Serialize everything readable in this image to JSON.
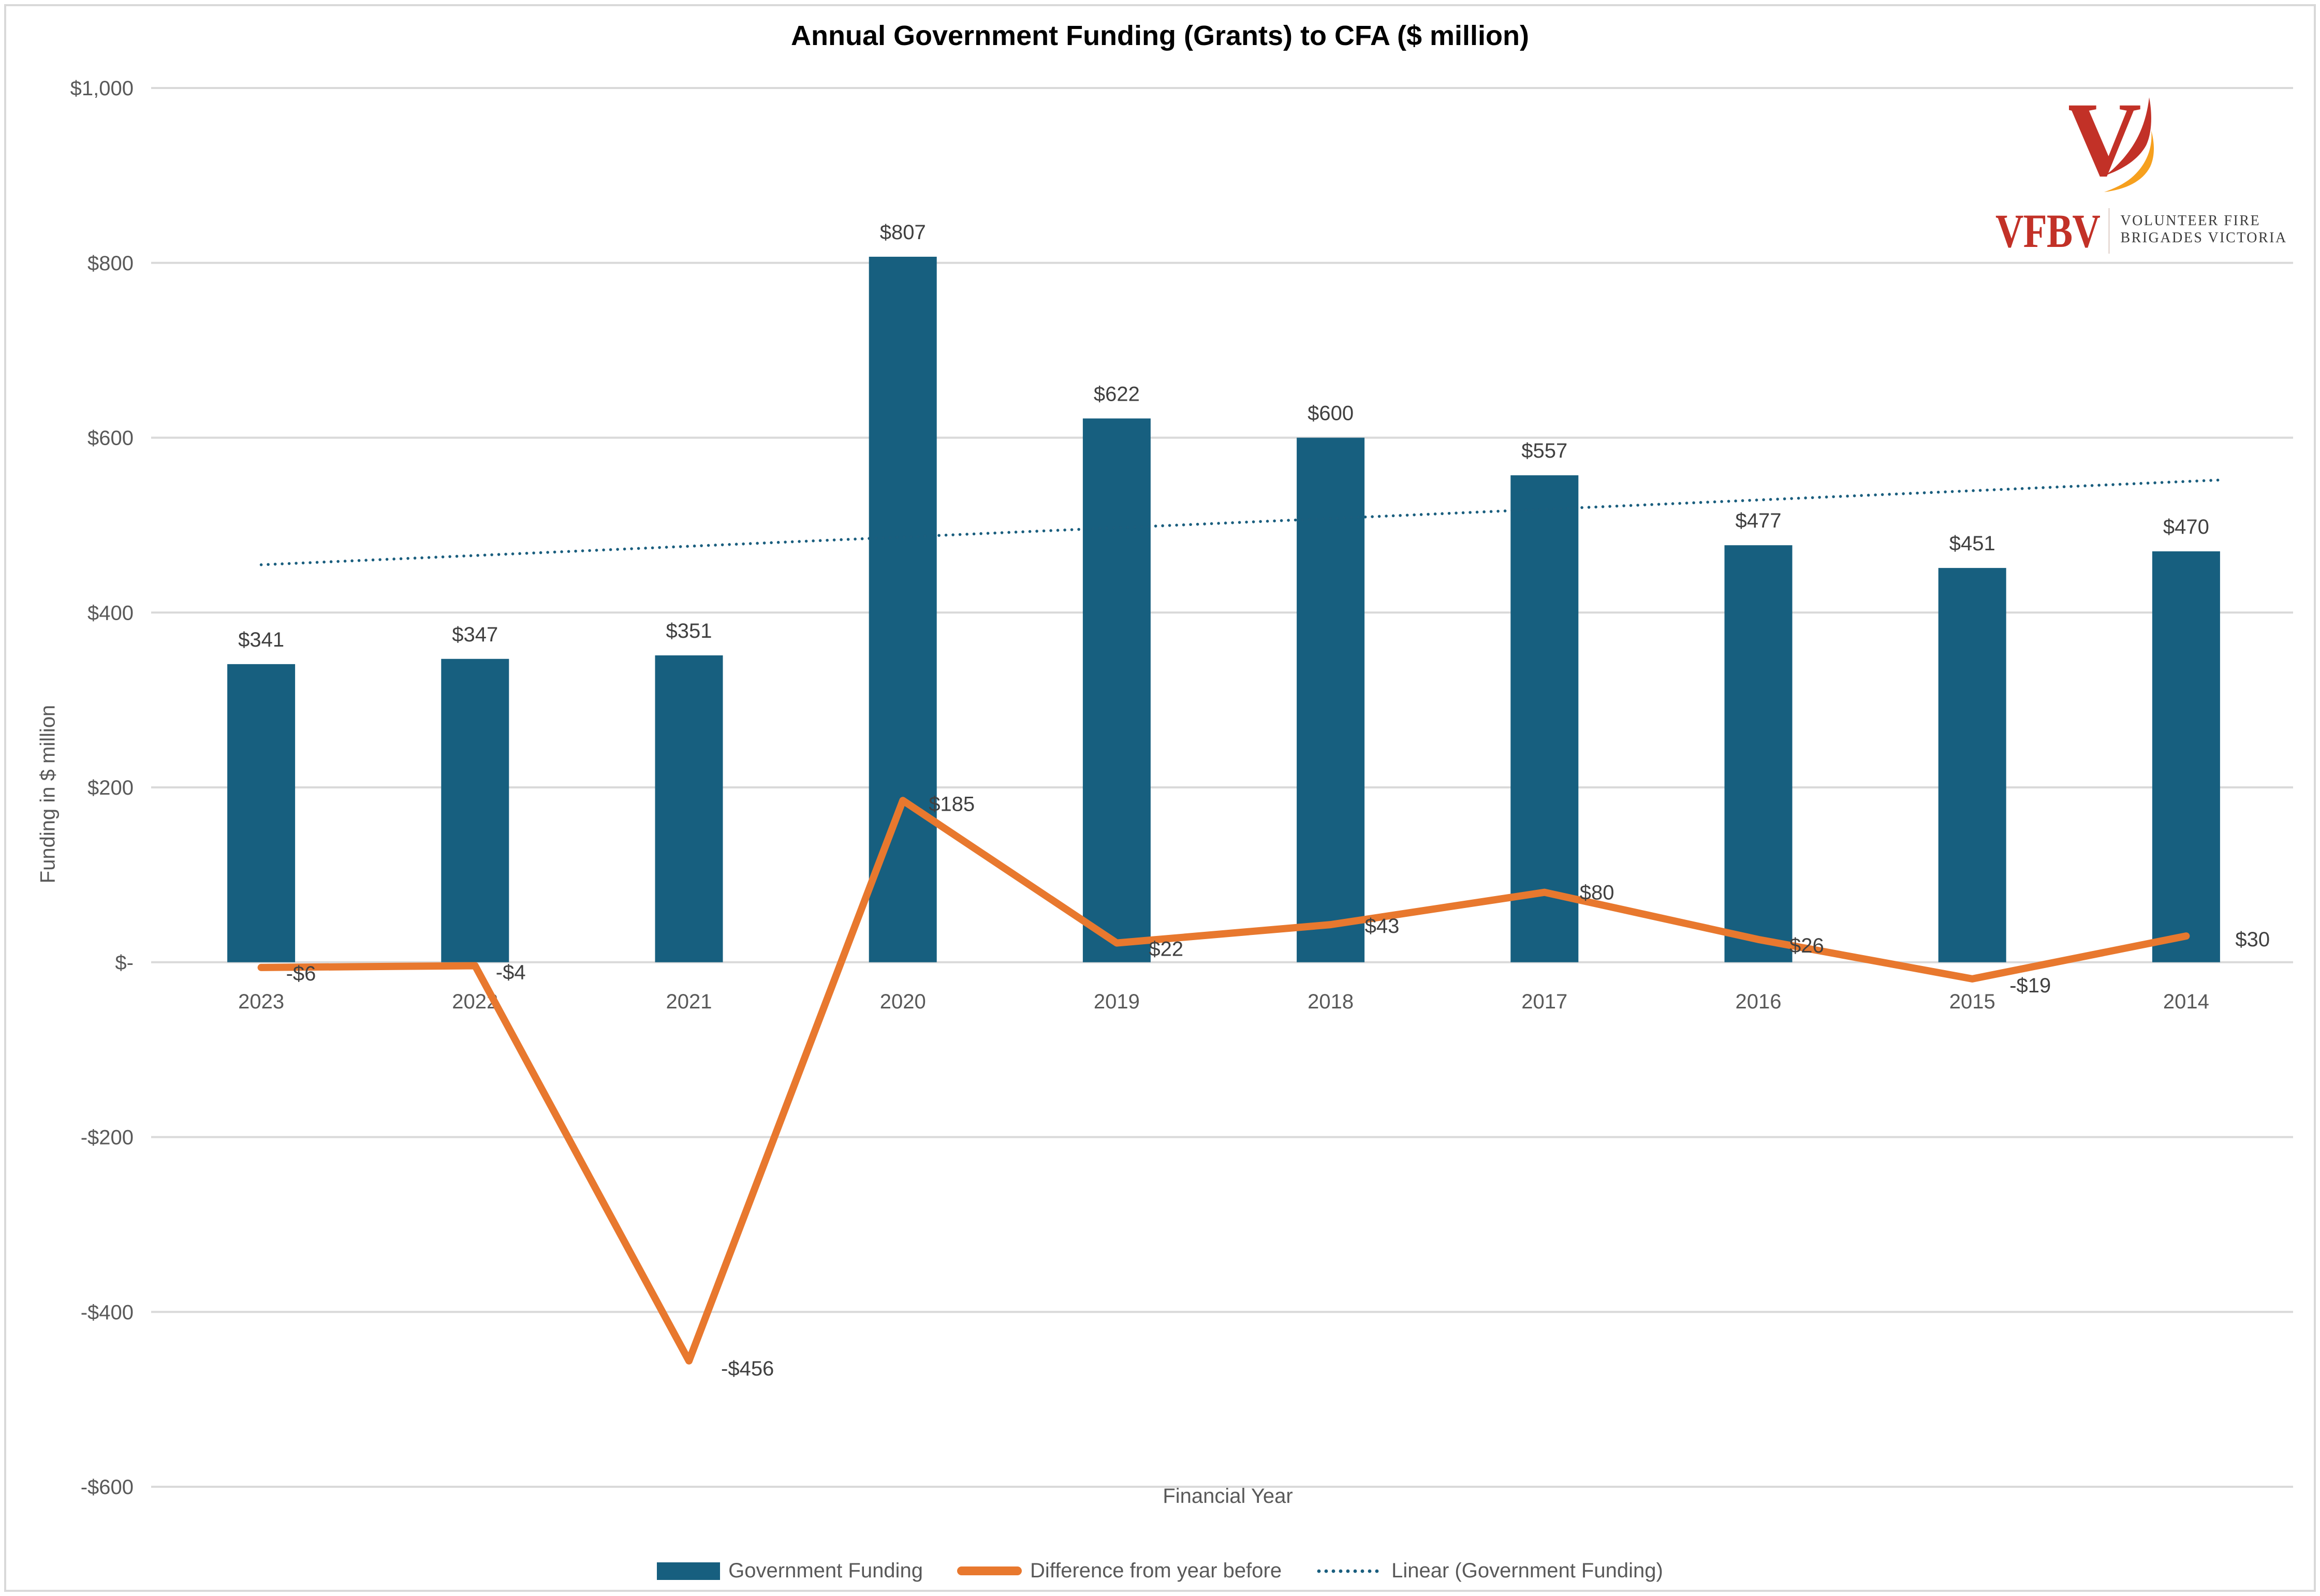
{
  "title": "Annual Government Funding (Grants) to CFA ($ million)",
  "logo": {
    "abbr": "VFBV",
    "name_line1": "VOLUNTEER FIRE",
    "name_line2": "BRIGADES VICTORIA"
  },
  "axes": {
    "x_title": "Financial Year",
    "y_title": "Funding in $ million"
  },
  "legend": [
    {
      "label": "Government Funding",
      "swatch": "bar"
    },
    {
      "label": "Difference from year before",
      "swatch": "line"
    },
    {
      "label": "Linear (Government Funding)",
      "swatch": "dotted"
    }
  ],
  "colors": {
    "bar": "#175F7F",
    "line": "#E8782E",
    "trend": "#1A5E7E",
    "grid": "#D9D9D9",
    "border": "#D9D9D9",
    "tick_text": "#595959",
    "value_text": "#404040",
    "title_text": "#000000",
    "logo_red": "#C23127",
    "logo_orange": "#F6A01E",
    "logo_text": "#3C3C3C",
    "logo_divider": "#E8DCD7"
  },
  "chart_data": {
    "type": "combo",
    "title": "Annual Government Funding (Grants) to CFA ($ million)",
    "xlabel": "Financial Year",
    "ylabel": "Funding in $ million",
    "categories": [
      "2023",
      "2022",
      "2021",
      "2020",
      "2019",
      "2018",
      "2017",
      "2016",
      "2015",
      "2014"
    ],
    "series": [
      {
        "name": "Government Funding",
        "type": "bar",
        "values": [
          341,
          347,
          351,
          807,
          622,
          600,
          557,
          477,
          451,
          470
        ],
        "labels": [
          "$341",
          "$347",
          "$351",
          "$807",
          "$622",
          "$600",
          "$557",
          "$477",
          "$451",
          "$470"
        ]
      },
      {
        "name": "Difference from year before",
        "type": "line",
        "values": [
          -6,
          -4,
          -456,
          185,
          22,
          43,
          80,
          26,
          -19,
          30
        ],
        "labels": [
          "-$6",
          "-$4",
          "-$456",
          "$185",
          "$22",
          "$43",
          "$80",
          "$26",
          "-$19",
          "$30"
        ]
      },
      {
        "name": "Linear (Government Funding)",
        "type": "linear_trendline",
        "source": "Government Funding"
      }
    ],
    "ylim": [
      -600,
      1000
    ],
    "y_ticks": [
      {
        "value": 1000,
        "label": "$1,000"
      },
      {
        "value": 800,
        "label": "$800"
      },
      {
        "value": 600,
        "label": "$600"
      },
      {
        "value": 400,
        "label": "$400"
      },
      {
        "value": 200,
        "label": "$200"
      },
      {
        "value": 0,
        "label": "$-"
      },
      {
        "value": -200,
        "label": "-$200"
      },
      {
        "value": -400,
        "label": "-$400"
      },
      {
        "value": -600,
        "label": "-$600"
      }
    ],
    "grid": true,
    "legend_position": "bottom"
  }
}
